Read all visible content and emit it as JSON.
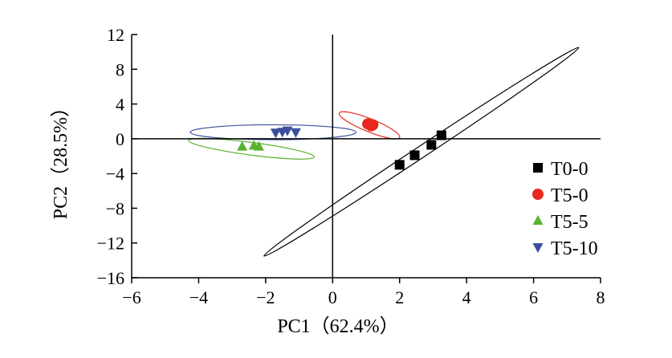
{
  "chart_data": {
    "type": "scatter",
    "title": "",
    "xlabel": "PC1（62.4%）",
    "ylabel": "PC2（28.5%）",
    "xlim": [
      -6,
      8
    ],
    "ylim": [
      -16,
      12
    ],
    "xticks": [
      "−6",
      "−4",
      "−2",
      "0",
      "2",
      "4",
      "6",
      "8"
    ],
    "yticks": [
      "12",
      "8",
      "4",
      "0",
      "−4",
      "−8",
      "−12",
      "−16"
    ],
    "grid": false,
    "legend_position": "right",
    "series": [
      {
        "name": "T0-0",
        "marker": "square",
        "color": "#000000",
        "points": [
          [
            2.0,
            -3.0
          ],
          [
            2.45,
            -1.9
          ],
          [
            2.95,
            -0.7
          ],
          [
            3.25,
            0.4
          ]
        ],
        "ellipse": {
          "from": [
            -2.05,
            -13.5
          ],
          "to": [
            7.35,
            10.5
          ],
          "minor_halfwidth_ratio": 0.03
        }
      },
      {
        "name": "T5-0",
        "marker": "circle",
        "color": "#e8281e",
        "points": [
          [
            1.05,
            1.7
          ],
          [
            1.15,
            1.5
          ],
          [
            1.2,
            1.6
          ]
        ],
        "ellipse": {
          "from": [
            0.2,
            2.95
          ],
          "to": [
            2.0,
            0.15
          ],
          "minor_halfwidth_ratio": 0.2
        }
      },
      {
        "name": "T5-5",
        "marker": "triangle-up",
        "color": "#5ab131",
        "points": [
          [
            -2.7,
            -0.9
          ],
          [
            -2.35,
            -0.8
          ],
          [
            -2.2,
            -0.9
          ]
        ],
        "ellipse": {
          "from": [
            -4.3,
            -0.2
          ],
          "to": [
            -0.55,
            -2.1
          ],
          "minor_halfwidth_ratio": 0.1
        }
      },
      {
        "name": "T5-10",
        "marker": "triangle-down",
        "color": "#3b4f9e",
        "points": [
          [
            -1.7,
            0.7
          ],
          [
            -1.5,
            0.8
          ],
          [
            -1.35,
            0.95
          ],
          [
            -1.1,
            0.75
          ]
        ],
        "ellipse": {
          "from": [
            -4.25,
            0.75
          ],
          "to": [
            0.7,
            0.75
          ],
          "minor_halfwidth_ratio": 0.09
        }
      }
    ]
  }
}
